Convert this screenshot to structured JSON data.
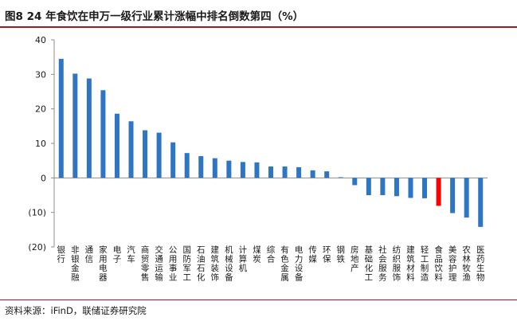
{
  "figure": {
    "title": "图8  24 年食饮在申万一级行业累计涨幅中排名倒数第四（%）",
    "source": "资料来源：iFinD，联储证券研究院"
  },
  "chart_data": {
    "type": "bar",
    "categories": [
      "银行",
      "非银金融",
      "通信",
      "家用电器",
      "电子",
      "汽车",
      "商贸零售",
      "交通运输",
      "公用事业",
      "国防军工",
      "石油石化",
      "建筑装饰",
      "机械设备",
      "计算机",
      "煤炭",
      "综合",
      "有色金属",
      "电力设备",
      "传媒",
      "环保",
      "钢铁",
      "房地产",
      "基础化工",
      "社会服务",
      "纺织服饰",
      "建筑材料",
      "轻工制造",
      "食品饮料",
      "美容护理",
      "农林牧渔",
      "医药生物"
    ],
    "values": [
      34.5,
      30.2,
      28.8,
      25.4,
      18.6,
      16.4,
      13.8,
      13.1,
      10.3,
      7.2,
      6.3,
      5.7,
      5.0,
      4.6,
      4.5,
      3.3,
      3.3,
      3.1,
      2.2,
      1.9,
      0.2,
      -2.1,
      -5.0,
      -5.0,
      -5.3,
      -5.8,
      -5.9,
      -8.1,
      -10.2,
      -11.5,
      -14.2
    ],
    "highlight": {
      "category": "食品饮料",
      "color": "#ff0000"
    },
    "bar_color": "#2e75c3",
    "yticks": [
      "40",
      "30",
      "20",
      "10",
      "0",
      "(10)",
      "(20)"
    ],
    "ylim": [
      -20,
      40
    ],
    "grid": false
  }
}
